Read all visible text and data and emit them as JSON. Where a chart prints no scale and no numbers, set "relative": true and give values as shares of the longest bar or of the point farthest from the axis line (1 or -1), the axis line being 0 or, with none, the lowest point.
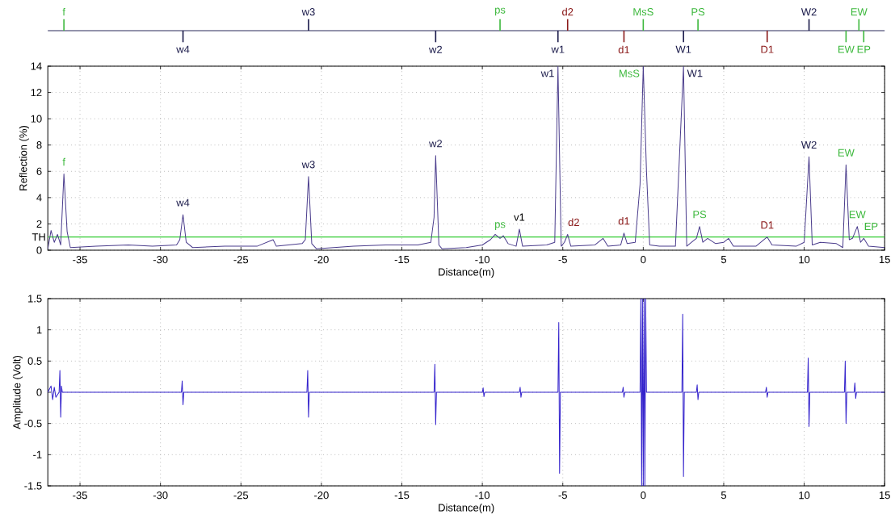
{
  "chart_data": [
    {
      "type": "bar",
      "relative": true,
      "xlim": [
        -37,
        15
      ],
      "series": [
        {
          "color": "#3cb83c",
          "x": [
            -36.0,
            -8.9,
            0,
            3.4,
            12.6,
            13.4,
            13.7
          ],
          "values": [
            1,
            1,
            1,
            1,
            -1,
            1,
            -1
          ]
        },
        {
          "color": "#8b1a1a",
          "x": [
            -4.7,
            -1.2,
            7.7
          ],
          "values": [
            1,
            -1,
            -1
          ]
        },
        {
          "color": "#1a1a4a",
          "x": [
            -28.6,
            -20.8,
            -12.9,
            -5.3,
            2.5,
            10.3
          ],
          "values": [
            -1,
            1,
            -1,
            -1,
            -1,
            1
          ]
        }
      ],
      "annotations": [
        {
          "text": "f",
          "x": -36.0,
          "y": 1
        },
        {
          "text": "w4",
          "x": -28.6,
          "y": -1
        },
        {
          "text": "w3",
          "x": -20.8,
          "y": 1
        },
        {
          "text": "w2",
          "x": -12.9,
          "y": -1
        },
        {
          "text": "ps",
          "x": -8.9,
          "y": 1
        },
        {
          "text": "w1",
          "x": -5.3,
          "y": -1
        },
        {
          "text": "d2",
          "x": -4.7,
          "y": 1
        },
        {
          "text": "d1",
          "x": -1.2,
          "y": -1
        },
        {
          "text": "MsS",
          "x": 0,
          "y": 1
        },
        {
          "text": "W1",
          "x": 2.5,
          "y": -1
        },
        {
          "text": "PS",
          "x": 3.4,
          "y": 1
        },
        {
          "text": "D1",
          "x": 7.7,
          "y": -1
        },
        {
          "text": "W2",
          "x": 10.3,
          "y": 1
        },
        {
          "text": "EW",
          "x": 12.6,
          "y": -1
        },
        {
          "text": "EW",
          "x": 13.4,
          "y": 1
        },
        {
          "text": "EP",
          "x": 13.7,
          "y": -1
        }
      ]
    },
    {
      "type": "line",
      "xlabel": "Distance(m)",
      "ylabel": "Reflection (%)",
      "xlim": [
        -37,
        15
      ],
      "ylim": [
        0,
        14
      ],
      "xticks": [
        -35,
        -30,
        -25,
        -20,
        -15,
        -10,
        -5,
        0,
        5,
        10,
        15
      ],
      "yticks": [
        0,
        2,
        4,
        6,
        8,
        10,
        12,
        14
      ],
      "grid": true,
      "ref_lines": [
        {
          "axis": "y",
          "value": 1,
          "label": "TH",
          "color": "#33cc33"
        }
      ],
      "series": [
        {
          "color": "#4a3c8c",
          "x": [
            -37,
            -36.8,
            -36.6,
            -36.4,
            -36.2,
            -36.0,
            -35.8,
            -35.6,
            -34,
            -32,
            -30.5,
            -29,
            -28.8,
            -28.6,
            -28.4,
            -28,
            -26,
            -24,
            -23,
            -22.8,
            -21.2,
            -21.0,
            -20.8,
            -20.6,
            -20.3,
            -18,
            -16,
            -14,
            -13.2,
            -13.0,
            -12.9,
            -12.7,
            -12.5,
            -11,
            -10,
            -9.5,
            -9.2,
            -8.9,
            -8.7,
            -8.4,
            -7.9,
            -7.7,
            -7.5,
            -6,
            -5.5,
            -5.3,
            -5.1,
            -4.9,
            -4.7,
            -4.5,
            -3,
            -2.5,
            -2.2,
            -1.4,
            -1.2,
            -1.0,
            -0.5,
            -0.2,
            0,
            0.2,
            0.4,
            1,
            2,
            2.5,
            2.7,
            3,
            3.3,
            3.5,
            3.7,
            4,
            4.5,
            5,
            5.3,
            5.6,
            7,
            7.7,
            8,
            9.5,
            10,
            10.3,
            10.5,
            11,
            12,
            12.4,
            12.6,
            12.8,
            13.0,
            13.3,
            13.5,
            13.7,
            14,
            15
          ],
          "values": [
            0.1,
            1.5,
            0.6,
            1.2,
            0.4,
            5.8,
            1.4,
            0.2,
            0.3,
            0.4,
            0.3,
            0.4,
            0.8,
            2.7,
            0.6,
            0.2,
            0.3,
            0.3,
            0.8,
            0.3,
            0.5,
            0.8,
            5.6,
            0.5,
            0.1,
            0.3,
            0.4,
            0.4,
            0.6,
            2.5,
            7.2,
            0.4,
            0.1,
            0.2,
            0.4,
            0.8,
            1.2,
            0.9,
            1.1,
            0.5,
            0.3,
            1.6,
            0.3,
            0.4,
            0.6,
            14,
            0.3,
            0.6,
            1.2,
            0.3,
            0.4,
            0.9,
            0.3,
            0.4,
            1.3,
            0.5,
            0.6,
            5,
            14,
            6,
            0.4,
            0.3,
            0.3,
            14,
            0.3,
            0.6,
            0.9,
            1.8,
            0.6,
            0.9,
            0.5,
            0.6,
            0.9,
            0.3,
            0.3,
            1.0,
            0.4,
            0.3,
            0.6,
            7.1,
            0.4,
            0.6,
            0.5,
            0.2,
            6.5,
            0.8,
            0.9,
            1.8,
            0.6,
            0.9,
            0.3,
            0.2
          ]
        }
      ],
      "annotations": [
        {
          "text": "f",
          "x": -36.0,
          "y": 5.8
        },
        {
          "text": "w4",
          "x": -28.6,
          "y": 2.7
        },
        {
          "text": "w3",
          "x": -20.8,
          "y": 5.6
        },
        {
          "text": "w2",
          "x": -12.9,
          "y": 7.2
        },
        {
          "text": "ps",
          "x": -8.9,
          "y": 0.9
        },
        {
          "text": "v1",
          "x": -7.7,
          "y": 1.6
        },
        {
          "text": "w1",
          "x": -5.3,
          "y": 14
        },
        {
          "text": "d2",
          "x": -4.7,
          "y": 1.2
        },
        {
          "text": "d1",
          "x": -1.2,
          "y": 1.3
        },
        {
          "text": "MsS",
          "x": 0,
          "y": 14
        },
        {
          "text": "W1",
          "x": 2.5,
          "y": 14
        },
        {
          "text": "PS",
          "x": 3.5,
          "y": 1.8
        },
        {
          "text": "D1",
          "x": 7.7,
          "y": 1.0
        },
        {
          "text": "W2",
          "x": 10.3,
          "y": 7.1
        },
        {
          "text": "EW",
          "x": 12.6,
          "y": 6.5
        },
        {
          "text": "EW",
          "x": 13.3,
          "y": 1.8
        },
        {
          "text": "EP",
          "x": 13.7,
          "y": 0.9
        }
      ]
    },
    {
      "type": "line",
      "xlabel": "Distance(m)",
      "ylabel": "Amplitude (Volt)",
      "xlim": [
        -37,
        15
      ],
      "ylim": [
        -1.5,
        1.5
      ],
      "xticks": [
        -35,
        -30,
        -25,
        -20,
        -15,
        -10,
        -5,
        0,
        5,
        10,
        15
      ],
      "yticks": [
        -1.5,
        -1,
        -0.5,
        0,
        0.5,
        1,
        1.5
      ],
      "grid": true,
      "series": [
        {
          "color": "#3322cc",
          "x": [
            -37,
            -36.8,
            -36.7,
            -36.6,
            -36.5,
            -36.3,
            -36.25,
            -36.2,
            -36.15,
            -36.1,
            -36.0,
            -28.7,
            -28.65,
            -28.6,
            -28.55,
            -20.9,
            -20.85,
            -20.8,
            -20.75,
            -13.0,
            -12.95,
            -12.9,
            -12.85,
            -10.0,
            -9.95,
            -9.9,
            -9.85,
            -7.7,
            -7.65,
            -7.6,
            -7.55,
            -5.3,
            -5.25,
            -5.2,
            -5.15,
            -1.3,
            -1.25,
            -1.2,
            -1.15,
            -0.2,
            -0.15,
            -0.1,
            -0.05,
            0,
            0.05,
            0.1,
            0.15,
            0.2,
            2.4,
            2.45,
            2.5,
            2.55,
            3.3,
            3.35,
            3.4,
            3.45,
            7.6,
            7.65,
            7.7,
            7.75,
            10.2,
            10.25,
            10.3,
            10.35,
            12.5,
            12.55,
            12.6,
            12.65,
            13.1,
            13.15,
            13.2,
            13.25,
            15
          ],
          "values": [
            0,
            0.1,
            -0.12,
            0.08,
            -0.08,
            0,
            0.35,
            -0.4,
            0.1,
            0,
            0,
            0,
            0.18,
            -0.2,
            0,
            0,
            0.35,
            -0.4,
            0,
            0,
            0.45,
            -0.52,
            0,
            0,
            0.07,
            -0.07,
            0,
            0,
            0.08,
            -0.08,
            0,
            0,
            1.12,
            -1.3,
            0,
            0,
            0.08,
            -0.08,
            0,
            0,
            1.5,
            -1.5,
            1.5,
            -1.5,
            1.5,
            -1.5,
            1.5,
            0,
            0,
            1.25,
            -1.35,
            0,
            0,
            0.12,
            -0.12,
            0,
            0,
            0.08,
            -0.08,
            0,
            0,
            0.55,
            -0.55,
            0,
            0,
            0.5,
            -0.5,
            0,
            0,
            0.15,
            -0.1,
            0,
            0
          ]
        }
      ]
    }
  ]
}
